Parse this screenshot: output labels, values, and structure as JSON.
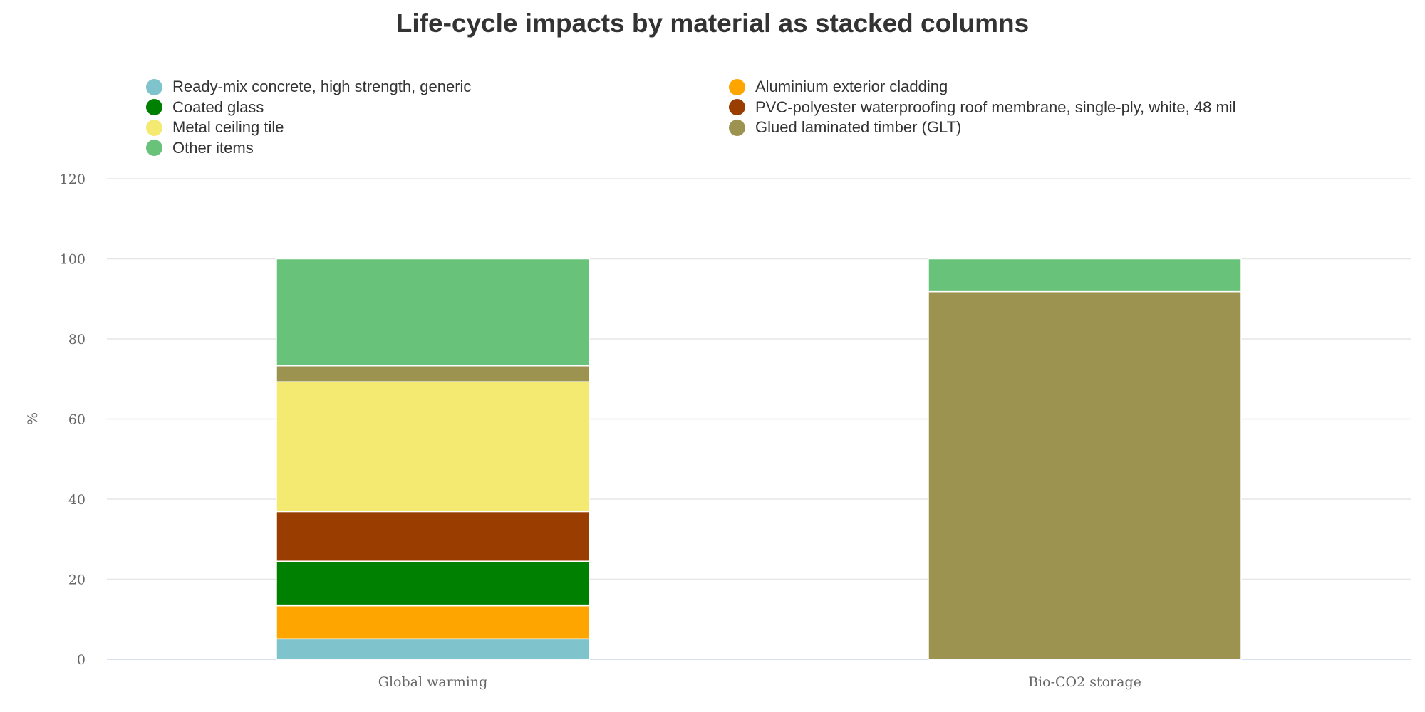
{
  "chart_data": {
    "type": "bar",
    "stacked": true,
    "title": "Life-cycle impacts by material as stacked columns",
    "xlabel": "",
    "ylabel": "%",
    "ylim": [
      0,
      120
    ],
    "yticks": [
      0,
      20,
      40,
      60,
      80,
      100,
      120
    ],
    "grid": true,
    "legend_position": "top",
    "categories": [
      "Global warming",
      "Bio-CO2 storage"
    ],
    "series": [
      {
        "name": "Ready-mix concrete, high strength, generic",
        "color": "#7fc3cc",
        "values": [
          5.1,
          0
        ]
      },
      {
        "name": "Aluminium exterior cladding",
        "color": "#ffa500",
        "values": [
          8.3,
          0
        ]
      },
      {
        "name": "Coated glass",
        "color": "#008000",
        "values": [
          11.1,
          0
        ]
      },
      {
        "name": "PVC-polyester waterproofing roof membrane, single-ply, white, 48 mil",
        "color": "#993d00",
        "values": [
          12.4,
          0
        ]
      },
      {
        "name": "Metal ceiling tile",
        "color": "#f4ea72",
        "values": [
          32.4,
          0
        ]
      },
      {
        "name": "Glued laminated timber (GLT)",
        "color": "#9d9350",
        "values": [
          4.0,
          91.8
        ]
      },
      {
        "name": "Other items",
        "color": "#68c27a",
        "values": [
          26.7,
          8.2
        ]
      }
    ],
    "legend_order": [
      0,
      2,
      4,
      6,
      1,
      3,
      5
    ]
  }
}
